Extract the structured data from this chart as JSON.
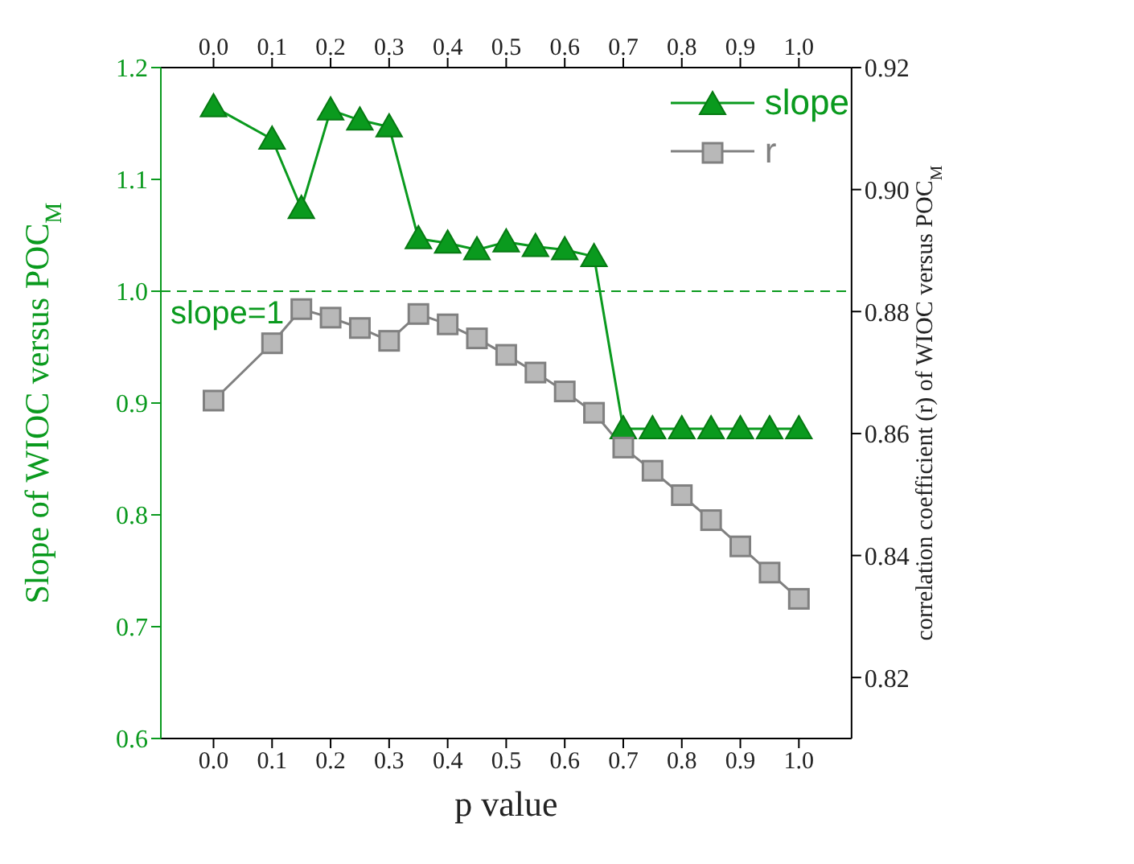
{
  "chart_data": {
    "type": "line",
    "xlabel": "p value",
    "ylabel": "Slope of WIOC versus POC$_{M}$",
    "y2label": "correlation coefficient (r) of WIOC versus POC$_{M}$",
    "x": [
      0.0,
      0.1,
      0.15,
      0.2,
      0.25,
      0.3,
      0.35,
      0.4,
      0.45,
      0.5,
      0.55,
      0.6,
      0.65,
      0.7,
      0.75,
      0.8,
      0.85,
      0.9,
      0.95,
      1.0
    ],
    "series": [
      {
        "name": "slope",
        "color": "#0a9a1e",
        "marker": "triangle",
        "values": [
          1.165,
          1.136,
          1.074,
          1.162,
          1.153,
          1.147,
          1.047,
          1.043,
          1.037,
          1.044,
          1.04,
          1.037,
          1.031,
          0.877,
          0.877,
          0.877,
          0.877,
          0.877,
          0.877,
          0.877
        ]
      },
      {
        "name": "r",
        "color": "#808080",
        "marker": "square",
        "axis": "y2",
        "values": [
          0.8654,
          0.8748,
          0.8804,
          0.879,
          0.8773,
          0.8752,
          0.8796,
          0.8779,
          0.8756,
          0.8729,
          0.87,
          0.8669,
          0.8634,
          0.8577,
          0.8539,
          0.8499,
          0.8458,
          0.8415,
          0.8372,
          0.8329
        ]
      }
    ],
    "xlim": [
      -0.09,
      1.09
    ],
    "xticks": [
      {
        "value": 0,
        "label": "0.0"
      },
      0.1,
      0.2,
      0.3,
      0.4,
      0.5,
      0.6,
      0.7,
      0.8,
      0.9,
      {
        "value": 1,
        "label": "1.0"
      }
    ],
    "x2lim": [
      -0.09,
      1.09
    ],
    "x2ticks": [
      {
        "value": 0,
        "label": "0.0"
      },
      0.1,
      0.2,
      0.3,
      0.4,
      0.5,
      0.6,
      0.7,
      0.8,
      0.9,
      {
        "value": 1,
        "label": "1.0"
      }
    ],
    "ylim": [
      0.6,
      1.2
    ],
    "yticks": [
      0.6,
      0.7,
      0.8,
      0.9,
      {
        "value": 1,
        "label": "1.0"
      },
      1.1,
      1.2
    ],
    "y2lim": [
      0.81,
      0.92
    ],
    "y2ticks": [
      0.82,
      0.84,
      0.86,
      0.88,
      {
        "value": 0.9,
        "label": "0.90"
      },
      0.92
    ],
    "ref_lines": [
      {
        "axis": "y",
        "value": 1.0,
        "label": "slope=1",
        "color": "#0a9a1e",
        "line_style": "dashed"
      }
    ],
    "legend": "top right",
    "line_style": "solid"
  }
}
